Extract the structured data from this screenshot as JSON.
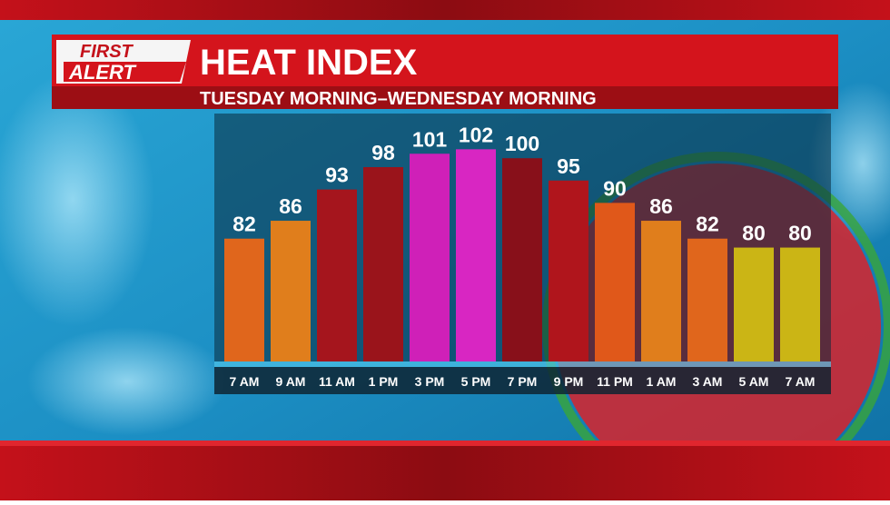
{
  "logo": {
    "line1": "FIRST",
    "line2": "ALERT"
  },
  "chart_data": {
    "type": "bar",
    "title": "HEAT INDEX",
    "subtitle": "TUESDAY MORNING–WEDNESDAY MORNING",
    "categories": [
      "7 AM",
      "9 AM",
      "11 AM",
      "1 PM",
      "3 PM",
      "5 PM",
      "7 PM",
      "9 PM",
      "11 PM",
      "1 AM",
      "3 AM",
      "5 AM",
      "7 AM"
    ],
    "values": [
      82,
      86,
      93,
      98,
      101,
      102,
      100,
      95,
      90,
      86,
      82,
      80,
      80
    ],
    "colors": [
      "#e0661c",
      "#e07e1c",
      "#a5151d",
      "#9a141b",
      "#cf20b8",
      "#d826c2",
      "#88101a",
      "#b0151c",
      "#e0581a",
      "#e07e1c",
      "#e0661c",
      "#cbb515",
      "#cbb515"
    ],
    "ylim": [
      54.5,
      110
    ]
  }
}
